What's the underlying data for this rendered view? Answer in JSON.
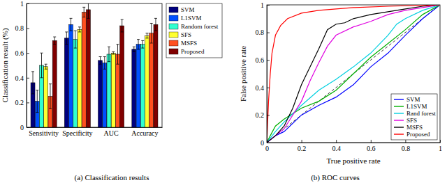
{
  "chart_data": [
    {
      "type": "bar",
      "title": "(a) Classification results",
      "ylabel": "Classification result (%)",
      "categories": [
        "Sensitivity",
        "Specificity",
        "AUC",
        "Accuracy"
      ],
      "ylim": [
        0,
        1
      ],
      "yticks": [
        0,
        0.2,
        0.4,
        0.6,
        0.8,
        1
      ],
      "legend": "right",
      "series": [
        {
          "name": "SVM",
          "color": "#00007f",
          "values": [
            0.36,
            0.72,
            0.54,
            0.63
          ],
          "errors": [
            0.09,
            0.05,
            0.03,
            0.02
          ]
        },
        {
          "name": "L1SVM",
          "color": "#0050ff",
          "values": [
            0.21,
            0.83,
            0.52,
            0.67
          ],
          "errors": [
            0.09,
            0.05,
            0.05,
            0.04
          ]
        },
        {
          "name": "Random forest",
          "color": "#30ffd0",
          "values": [
            0.5,
            0.71,
            0.59,
            0.67
          ],
          "errors": [
            0.1,
            0.07,
            0.06,
            0.03
          ]
        },
        {
          "name": "SFS",
          "color": "#ffff30",
          "values": [
            0.49,
            0.79,
            0.6,
            0.74
          ],
          "errors": [
            0.02,
            0.02,
            0.01,
            0.02
          ]
        },
        {
          "name": "MSFS",
          "color": "#ff5020",
          "values": [
            0.25,
            0.93,
            0.59,
            0.76
          ],
          "errors": [
            0.1,
            0.04,
            0.08,
            0.08
          ]
        },
        {
          "name": "Proposed",
          "color": "#800000",
          "values": [
            0.7,
            0.95,
            0.82,
            0.83
          ],
          "errors": [
            0.03,
            0.07,
            0.05,
            0.05
          ]
        }
      ]
    },
    {
      "type": "line",
      "title": "(b) ROC curves",
      "xlabel": "True positive rate",
      "ylabel": "False positive rate",
      "xlim": [
        0,
        1
      ],
      "ylim": [
        0,
        1
      ],
      "xticks": [
        0,
        0.2,
        0.4,
        0.6,
        0.8,
        1
      ],
      "yticks": [
        0,
        0.2,
        0.4,
        0.6,
        0.8,
        1
      ],
      "legend": "bottom-right",
      "series": [
        {
          "name": "SVM",
          "color": "#0000ff",
          "x": [
            0,
            0.05,
            0.1,
            0.2,
            0.3,
            0.4,
            0.5,
            0.6,
            0.7,
            0.8,
            0.9,
            1
          ],
          "values": [
            0,
            0.05,
            0.08,
            0.2,
            0.27,
            0.33,
            0.42,
            0.55,
            0.65,
            0.78,
            0.9,
            1
          ]
        },
        {
          "name": "L1SVM",
          "color": "#00b000",
          "x": [
            0,
            0.02,
            0.05,
            0.1,
            0.2,
            0.3,
            0.4,
            0.5,
            0.6,
            0.7,
            0.8,
            0.9,
            1
          ],
          "values": [
            0,
            0.05,
            0.12,
            0.17,
            0.25,
            0.3,
            0.38,
            0.5,
            0.62,
            0.72,
            0.82,
            0.93,
            1
          ]
        },
        {
          "name": "Rand forest",
          "color": "#00d0e0",
          "x": [
            0,
            0.05,
            0.1,
            0.2,
            0.3,
            0.4,
            0.5,
            0.6,
            0.7,
            0.75,
            0.8,
            0.9,
            1
          ],
          "values": [
            0,
            0.08,
            0.15,
            0.27,
            0.38,
            0.46,
            0.55,
            0.65,
            0.78,
            0.86,
            0.9,
            0.96,
            1
          ]
        },
        {
          "name": "SFS",
          "color": "#e000e0",
          "x": [
            0,
            0.1,
            0.2,
            0.25,
            0.3,
            0.35,
            0.4,
            0.5,
            0.6,
            0.7,
            0.8,
            0.9,
            1
          ],
          "values": [
            0,
            0.1,
            0.3,
            0.45,
            0.58,
            0.7,
            0.78,
            0.84,
            0.88,
            0.93,
            0.96,
            0.98,
            1
          ]
        },
        {
          "name": "MSFS",
          "color": "#000000",
          "x": [
            0,
            0.05,
            0.1,
            0.15,
            0.2,
            0.25,
            0.3,
            0.35,
            0.4,
            0.45,
            0.5,
            0.6,
            0.7,
            0.8,
            0.9,
            1
          ],
          "values": [
            0,
            0.05,
            0.12,
            0.25,
            0.42,
            0.55,
            0.68,
            0.82,
            0.86,
            0.87,
            0.9,
            0.93,
            0.95,
            0.97,
            0.99,
            1
          ]
        },
        {
          "name": "Proposed",
          "color": "#ff0000",
          "x": [
            0,
            0.01,
            0.02,
            0.03,
            0.05,
            0.08,
            0.12,
            0.2,
            0.3,
            0.5,
            0.7,
            1
          ],
          "values": [
            0,
            0.3,
            0.5,
            0.65,
            0.78,
            0.85,
            0.9,
            0.94,
            0.96,
            0.98,
            0.99,
            1
          ]
        }
      ]
    }
  ]
}
